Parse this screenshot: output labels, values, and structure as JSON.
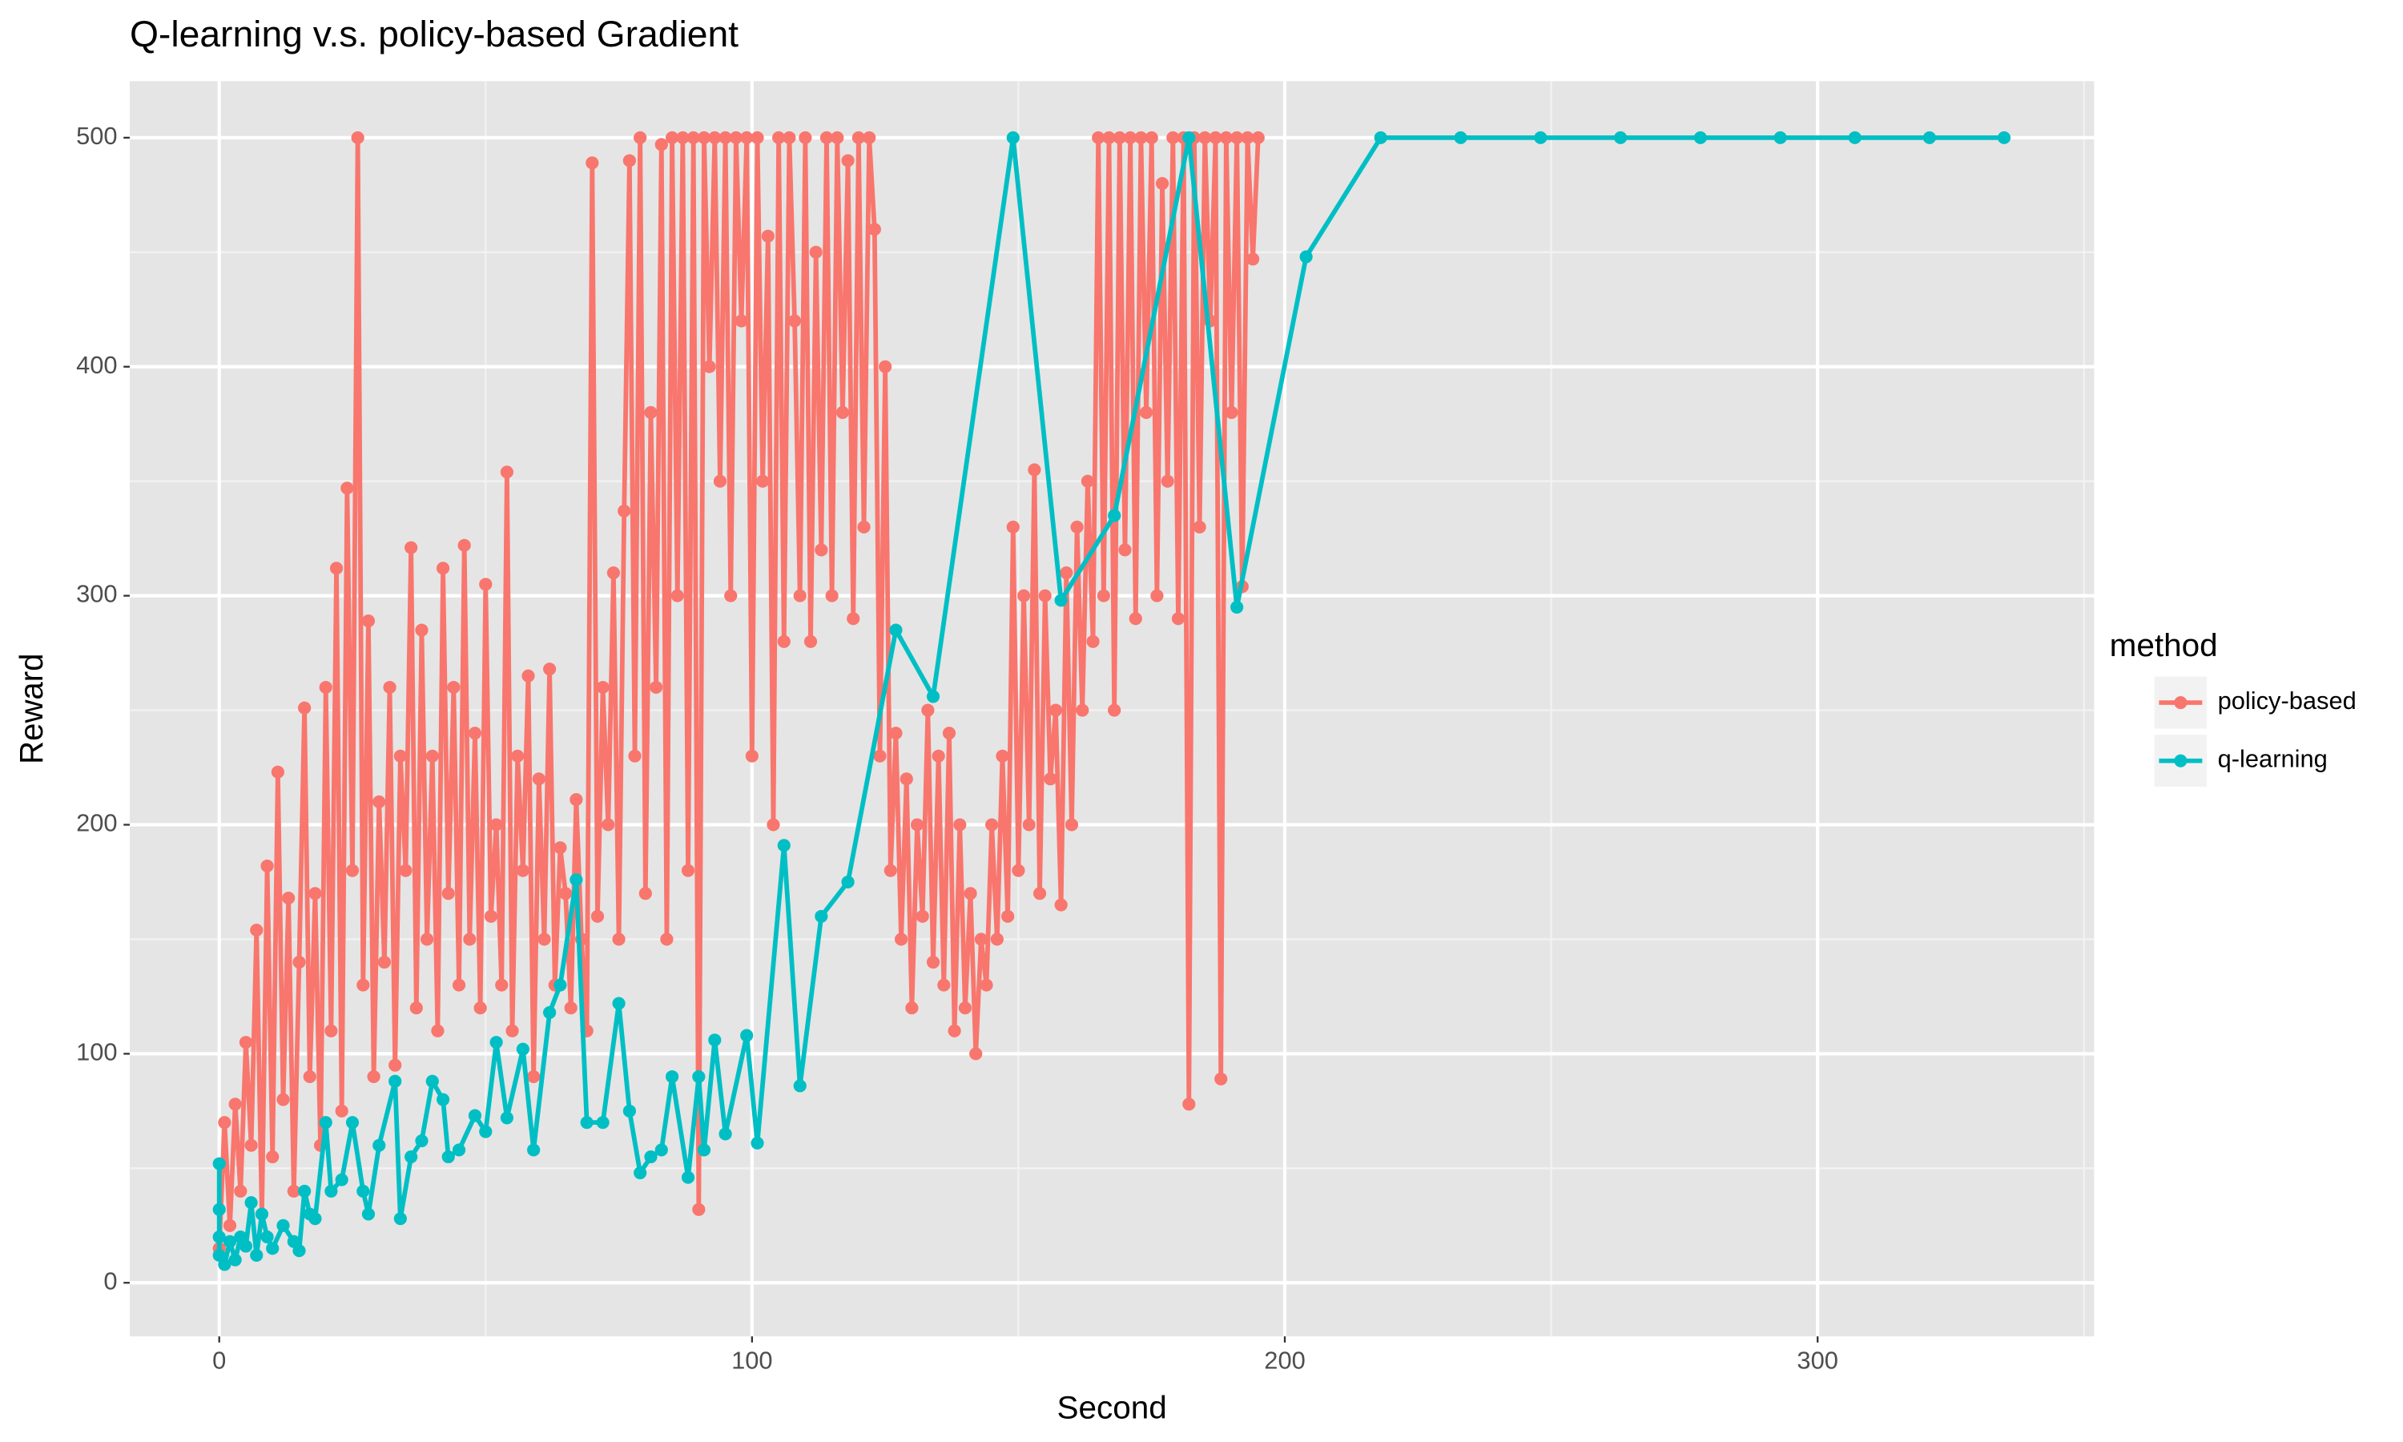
{
  "chart_data": {
    "type": "line",
    "title": "Q-learning v.s. policy-based Gradient",
    "x_label": "Second",
    "y_label": "Reward",
    "legend_title": "method",
    "legend": "right",
    "grid": true,
    "xlim": [
      -16.8,
      351.9
    ],
    "ylim": [
      -23.4,
      524.7
    ],
    "xticks": [
      0,
      100,
      200,
      300
    ],
    "yticks": [
      0,
      100,
      200,
      300,
      400,
      500
    ],
    "series": [
      {
        "name": "policy-based",
        "color": "#F8766D",
        "x": [
          0,
          1,
          2,
          3,
          4,
          5,
          6,
          7,
          8,
          9,
          10,
          11,
          12,
          13,
          14,
          15,
          16,
          17,
          18,
          19,
          20,
          21,
          22,
          23,
          24,
          25,
          26,
          27,
          28,
          29,
          30,
          31,
          32,
          33,
          34,
          35,
          36,
          37,
          38,
          39,
          40,
          41,
          42,
          43,
          44,
          45,
          46,
          47,
          48,
          49,
          50,
          51,
          52,
          53,
          54,
          55,
          56,
          57,
          58,
          59,
          60,
          61,
          62,
          63,
          64,
          65,
          66,
          67,
          68,
          69,
          70,
          71,
          72,
          73,
          74,
          75,
          76,
          77,
          78,
          79,
          80,
          81,
          82,
          83,
          84,
          85,
          86,
          87,
          88,
          89,
          90,
          91,
          92,
          93,
          94,
          95,
          96,
          97,
          98,
          99,
          100,
          101,
          102,
          103,
          104,
          105,
          106,
          107,
          108,
          109,
          110,
          111,
          112,
          113,
          114,
          115,
          116,
          117,
          118,
          119,
          120,
          121,
          122,
          123,
          124,
          125,
          126,
          127,
          128,
          129,
          130,
          131,
          132,
          133,
          134,
          135,
          136,
          137,
          138,
          139,
          140,
          141,
          142,
          143,
          144,
          145,
          146,
          147,
          148,
          149,
          150,
          151,
          152,
          153,
          154,
          155,
          156,
          157,
          158,
          159,
          160,
          161,
          162,
          163,
          164,
          165,
          166,
          167,
          168,
          169,
          170,
          171,
          172,
          173,
          174,
          175,
          176,
          177,
          178,
          179,
          180,
          181,
          182,
          183,
          184,
          185,
          186,
          187,
          188,
          189,
          190,
          191,
          192,
          193,
          194,
          195
        ],
        "values": [
          15,
          70,
          25,
          78,
          40,
          105,
          60,
          154,
          30,
          182,
          55,
          223,
          80,
          168,
          40,
          140,
          251,
          90,
          170,
          60,
          260,
          110,
          312,
          75,
          347,
          180,
          500,
          130,
          289,
          90,
          210,
          140,
          260,
          95,
          230,
          180,
          321,
          120,
          285,
          150,
          230,
          110,
          312,
          170,
          260,
          130,
          322,
          150,
          240,
          120,
          305,
          160,
          200,
          130,
          354,
          110,
          230,
          180,
          265,
          90,
          220,
          150,
          268,
          130,
          190,
          170,
          120,
          211,
          150,
          110,
          489,
          160,
          260,
          200,
          310,
          150,
          337,
          490,
          230,
          500,
          170,
          380,
          260,
          497,
          150,
          500,
          300,
          500,
          180,
          500,
          32,
          500,
          400,
          500,
          350,
          500,
          300,
          500,
          420,
          500,
          230,
          500,
          350,
          457,
          200,
          500,
          280,
          500,
          420,
          300,
          500,
          280,
          450,
          320,
          500,
          300,
          500,
          380,
          490,
          290,
          500,
          330,
          500,
          460,
          230,
          400,
          180,
          240,
          150,
          220,
          120,
          200,
          160,
          250,
          140,
          230,
          130,
          240,
          110,
          200,
          120,
          170,
          100,
          150,
          130,
          200,
          150,
          230,
          160,
          330,
          180,
          300,
          200,
          355,
          170,
          300,
          220,
          250,
          165,
          310,
          200,
          330,
          250,
          350,
          280,
          500,
          300,
          500,
          250,
          500,
          320,
          500,
          290,
          500,
          380,
          500,
          300,
          480,
          350,
          500,
          290,
          500,
          78,
          500,
          330,
          500,
          420,
          500,
          89,
          500,
          380,
          500,
          304,
          500,
          447,
          500
        ]
      },
      {
        "name": "q-learning",
        "color": "#00BFC4",
        "x": [
          0,
          0,
          0,
          0,
          1,
          2,
          3,
          4,
          5,
          6,
          7,
          8,
          9,
          10,
          12,
          14,
          15,
          16,
          17,
          18,
          20,
          21,
          23,
          25,
          27,
          28,
          30,
          33,
          34,
          36,
          38,
          40,
          42,
          43,
          45,
          48,
          50,
          52,
          54,
          57,
          59,
          62,
          64,
          67,
          69,
          72,
          75,
          77,
          79,
          81,
          83,
          85,
          88,
          90,
          91,
          93,
          95,
          99,
          101,
          106,
          109,
          113,
          118,
          127,
          134,
          149,
          158,
          168,
          182,
          191,
          204,
          218,
          233,
          248,
          263,
          278,
          293,
          307,
          321,
          335
        ],
        "values": [
          52,
          32,
          20,
          12,
          8,
          18,
          10,
          20,
          16,
          35,
          12,
          30,
          20,
          15,
          25,
          18,
          14,
          40,
          30,
          28,
          70,
          40,
          45,
          70,
          40,
          30,
          60,
          88,
          28,
          55,
          62,
          88,
          80,
          55,
          58,
          73,
          66,
          105,
          72,
          102,
          58,
          118,
          130,
          176,
          70,
          70,
          122,
          75,
          48,
          55,
          58,
          90,
          46,
          90,
          58,
          106,
          65,
          108,
          61,
          191,
          86,
          160,
          175,
          285,
          256,
          500,
          298,
          335,
          500,
          295,
          448,
          500,
          500,
          500,
          500,
          500,
          500,
          500,
          500,
          500
        ]
      }
    ]
  }
}
